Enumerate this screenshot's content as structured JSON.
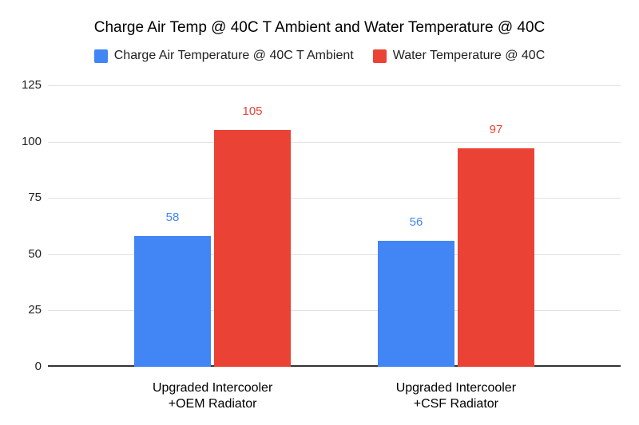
{
  "chart_data": {
    "type": "bar",
    "title": "Charge Air Temp @ 40C T Ambient and Water Temperature @ 40C",
    "categories": [
      "Upgraded Intercooler\n+OEM Radiator",
      "Upgraded Intercooler\n+CSF Radiator"
    ],
    "series": [
      {
        "name": "Charge Air Temperature @ 40C T Ambient",
        "color": "#4285F4",
        "values": [
          58,
          56
        ]
      },
      {
        "name": "Water Temperature @ 40C",
        "color": "#EA4335",
        "values": [
          105,
          97
        ]
      }
    ],
    "ylim": [
      0,
      125
    ],
    "yticks": [
      0,
      25,
      50,
      75,
      100,
      125
    ],
    "grid": true,
    "legend_position": "top",
    "data_labels": true
  },
  "colors": {
    "background": "#ffffff",
    "gridline": "#e0e0e0",
    "axis_line": "#333333",
    "tick_label": "#1f1f1f",
    "category_label": "#000000",
    "title": "#000000"
  }
}
